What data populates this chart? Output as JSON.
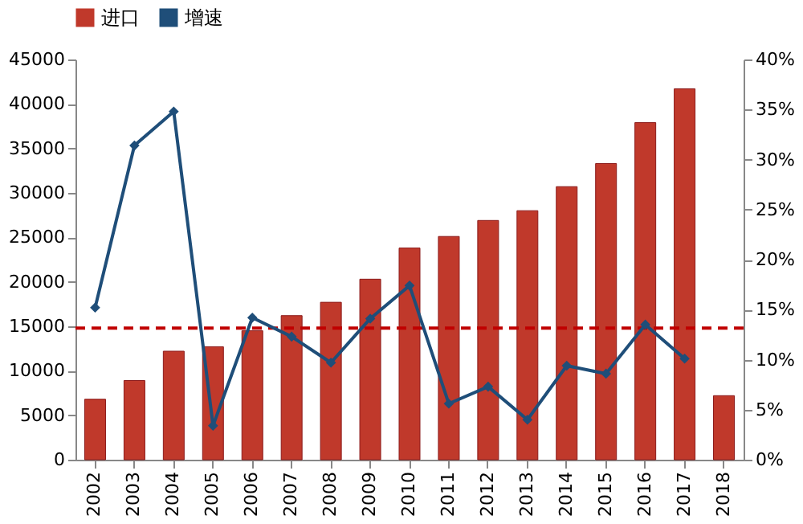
{
  "chart_data": {
    "type": "bar",
    "categories": [
      "2002",
      "2003",
      "2004",
      "2005",
      "2006",
      "2007",
      "2008",
      "2009",
      "2010",
      "2011",
      "2012",
      "2013",
      "2014",
      "2015",
      "2016",
      "2017",
      "2018"
    ],
    "series": [
      {
        "name": "进口",
        "color": "#c0392b",
        "values": [
          6800,
          8900,
          12200,
          12700,
          14500,
          16200,
          17700,
          20300,
          23800,
          25100,
          26900,
          28000,
          30700,
          33300,
          37900,
          41700,
          7200
        ]
      },
      {
        "name": "增速",
        "type": "line",
        "axis": "y2",
        "color": "#1f4e79",
        "marker": "diamond",
        "values": [
          15.2,
          31.4,
          34.8,
          3.4,
          14.2,
          12.3,
          9.7,
          14.1,
          17.4,
          5.6,
          7.3,
          4.0,
          9.4,
          8.6,
          13.5,
          10.1,
          null
        ]
      }
    ],
    "ylim": [
      0,
      45000
    ],
    "yticks": [
      0,
      5000,
      10000,
      15000,
      20000,
      25000,
      30000,
      35000,
      40000,
      45000
    ],
    "y2lim": [
      0,
      40
    ],
    "y2ticks": [
      {
        "value": 0,
        "label": "0%"
      },
      {
        "value": 5,
        "label": "5%"
      },
      {
        "value": 10,
        "label": "10%"
      },
      {
        "value": 15,
        "label": "15%"
      },
      {
        "value": 20,
        "label": "20%"
      },
      {
        "value": 25,
        "label": "25%"
      },
      {
        "value": 30,
        "label": "30%"
      },
      {
        "value": 35,
        "label": "35%"
      },
      {
        "value": 40,
        "label": "40%"
      }
    ],
    "ref_lines": [
      {
        "axis": "y",
        "value": 14800,
        "color": "#c00000",
        "line_style": "dashed"
      }
    ],
    "legend": "top",
    "grid": false
  }
}
